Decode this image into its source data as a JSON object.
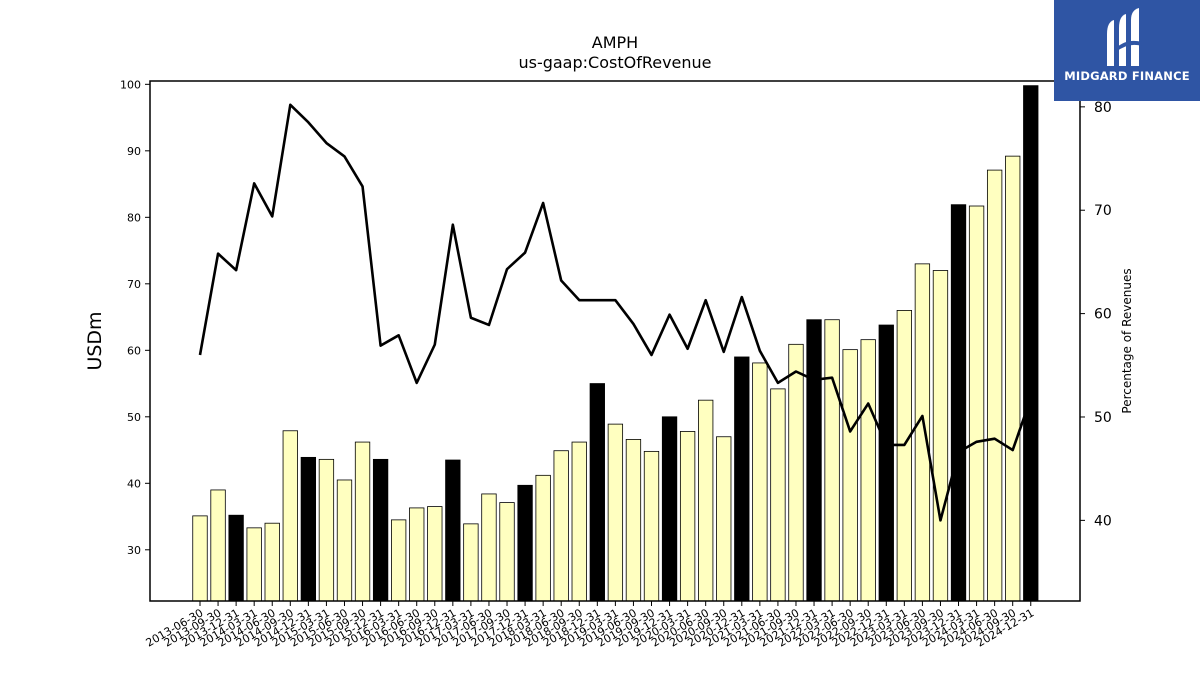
{
  "chart_data": {
    "type": "bar",
    "title": "AMPH",
    "subtitle": "us-gaap:CostOfRevenue",
    "ylabel": "USDm",
    "y2label": "Percentage of Revenues",
    "ylim": [
      22.3,
      100.5
    ],
    "y2lim": [
      32.2,
      82.5
    ],
    "yticks": [
      30,
      40,
      50,
      60,
      70,
      80,
      90,
      100
    ],
    "y2ticks": [
      40,
      50,
      60,
      70,
      80
    ],
    "categories": [
      "2013-06-30",
      "2013-09-30",
      "2013-12-31",
      "2014-03-31",
      "2014-06-30",
      "2014-09-30",
      "2014-12-31",
      "2015-03-31",
      "2015-06-30",
      "2015-09-30",
      "2015-12-31",
      "2016-03-31",
      "2016-06-30",
      "2016-09-30",
      "2016-12-31",
      "2017-03-31",
      "2017-06-30",
      "2017-09-30",
      "2017-12-31",
      "2018-03-31",
      "2018-06-30",
      "2018-09-30",
      "2018-12-31",
      "2019-03-31",
      "2019-06-30",
      "2019-09-30",
      "2019-12-31",
      "2020-03-31",
      "2020-06-30",
      "2020-09-30",
      "2020-12-31",
      "2021-03-31",
      "2021-06-30",
      "2021-09-30",
      "2021-12-31",
      "2022-03-31",
      "2022-06-30",
      "2022-09-30",
      "2022-12-31",
      "2023-03-31",
      "2023-06-30",
      "2023-09-30",
      "2023-12-31",
      "2024-03-31",
      "2024-06-30",
      "2024-09-30",
      "2024-12-31"
    ],
    "series": [
      {
        "kind": "bar",
        "axis": "left",
        "values": [
          35.1,
          39.0,
          35.2,
          33.3,
          34.0,
          47.9,
          43.9,
          43.6,
          40.5,
          46.2,
          43.6,
          34.5,
          36.3,
          36.5,
          43.5,
          33.9,
          38.4,
          37.1,
          39.7,
          41.2,
          44.9,
          46.2,
          55.0,
          48.9,
          46.6,
          44.8,
          50.0,
          47.8,
          52.5,
          47.0,
          59.0,
          58.1,
          54.2,
          60.9,
          64.6,
          64.6,
          60.1,
          61.6,
          63.8,
          66.0,
          73.0,
          72.0,
          81.9,
          81.7,
          87.1,
          89.2,
          99.8
        ],
        "highlight_color": "#000000",
        "base_color": "#ffffc0",
        "highlight_categories": [
          "2013-12-31",
          "2014-12-31",
          "2015-12-31",
          "2016-12-31",
          "2017-12-31",
          "2018-12-31",
          "2019-12-31",
          "2020-12-31",
          "2021-12-31",
          "2022-12-31",
          "2023-12-31",
          "2024-12-31"
        ]
      },
      {
        "kind": "line",
        "axis": "right",
        "color": "#000000",
        "values": [
          56.0,
          65.8,
          64.2,
          72.6,
          69.4,
          80.2,
          78.5,
          76.5,
          75.2,
          72.3,
          56.9,
          57.9,
          53.3,
          57.0,
          68.6,
          59.6,
          58.9,
          64.3,
          65.9,
          70.7,
          63.2,
          61.3,
          61.3,
          61.3,
          59.0,
          56.0,
          59.9,
          56.6,
          61.3,
          56.3,
          61.6,
          56.4,
          53.3,
          54.4,
          53.6,
          53.8,
          48.6,
          51.3,
          47.3,
          47.3,
          50.1,
          40.0,
          46.6,
          47.6,
          47.9,
          46.8,
          51.8
        ]
      }
    ],
    "legend": "none",
    "grid": false
  },
  "logo": {
    "text": "MIDGARD FINANCE",
    "bg_color": "#2f55a4"
  }
}
